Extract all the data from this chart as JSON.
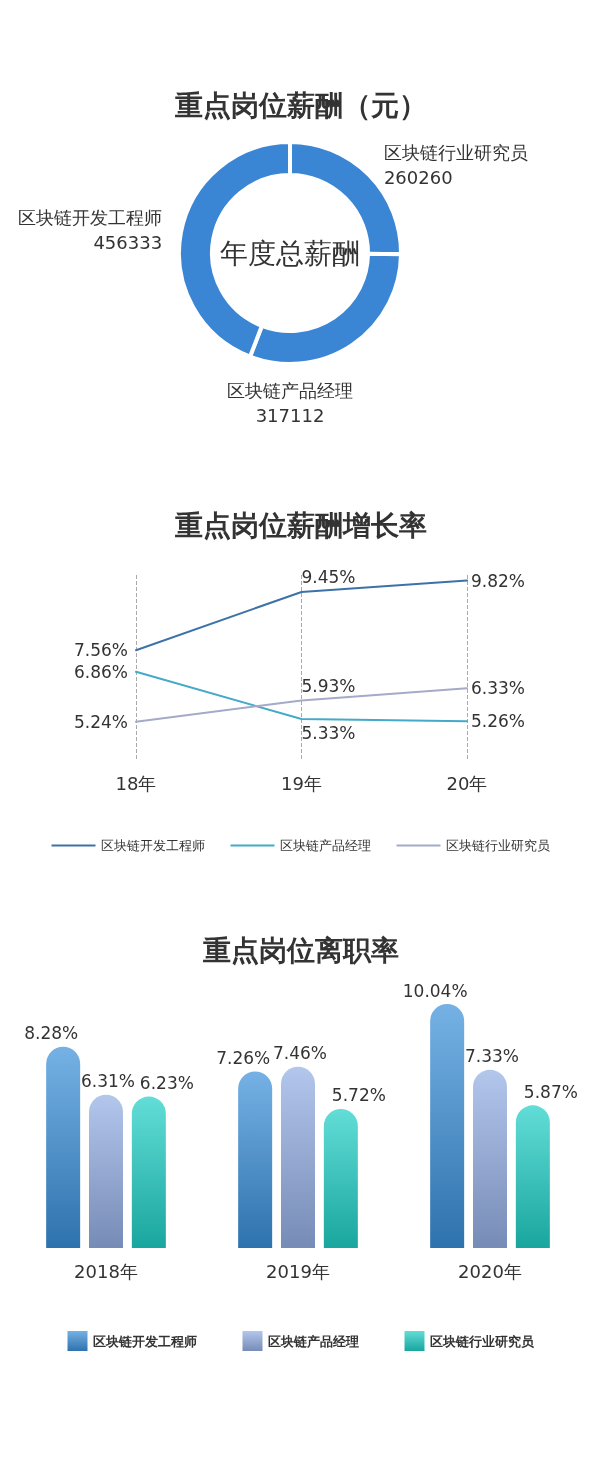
{
  "chart_data": [
    {
      "type": "donut",
      "title": "重点岗位薪酬（元）",
      "categories": [
        "区块链行业研究员",
        "区块链产品经理",
        "区块链开发工程师"
      ],
      "values": [
        260260,
        317112,
        456333
      ],
      "colors": [
        "#3a86d4",
        "#3a86d4",
        "#3a86d4"
      ],
      "data_labels": true,
      "annotations": [
        "年度总薪酬"
      ]
    },
    {
      "type": "line",
      "title": "重点岗位薪酬增长率",
      "categories": [
        "18年",
        "19年",
        "20年"
      ],
      "series": [
        {
          "name": "区块链开发工程师",
          "color": "#3d72a8",
          "values": [
            7.56,
            9.45,
            9.82
          ],
          "value_labels": [
            "7.56%",
            "9.45%",
            "9.82%"
          ]
        },
        {
          "name": "区块链产品经理",
          "color": "#45a9c8",
          "values": [
            6.86,
            5.33,
            5.26
          ],
          "value_labels": [
            "6.86%",
            "5.33%",
            "5.26%"
          ]
        },
        {
          "name": "区块链行业研究员",
          "color": "#a4aac8",
          "values": [
            5.24,
            5.93,
            6.33
          ],
          "value_labels": [
            "5.24%",
            "5.93%",
            "6.33%"
          ]
        }
      ],
      "ylim": [
        4,
        10
      ],
      "grid": "x",
      "legend": "bottom",
      "marker": "none",
      "line_style": "solid",
      "tick_labels": "x"
    },
    {
      "type": "bar",
      "title": "重点岗位离职率",
      "categories": [
        "2018年",
        "2019年",
        "2020年"
      ],
      "series": [
        {
          "name": "区块链开发工程师",
          "color": "#3a8fd8",
          "values": [
            8.28,
            7.26,
            10.04
          ],
          "value_labels": [
            "8.28%",
            "7.26%",
            "10.04%"
          ]
        },
        {
          "name": "区块链产品经理",
          "color": "#93aee4",
          "values": [
            6.31,
            7.46,
            7.33
          ],
          "value_labels": [
            "6.31%",
            "7.46%",
            "7.33%"
          ]
        },
        {
          "name": "区块链行业研究员",
          "color": "#1fcfc6",
          "values": [
            6.23,
            5.72,
            5.87
          ],
          "value_labels": [
            "6.23%",
            "5.72%",
            "5.87%"
          ]
        }
      ],
      "legend": "bottom",
      "tick_labels": "x"
    }
  ]
}
